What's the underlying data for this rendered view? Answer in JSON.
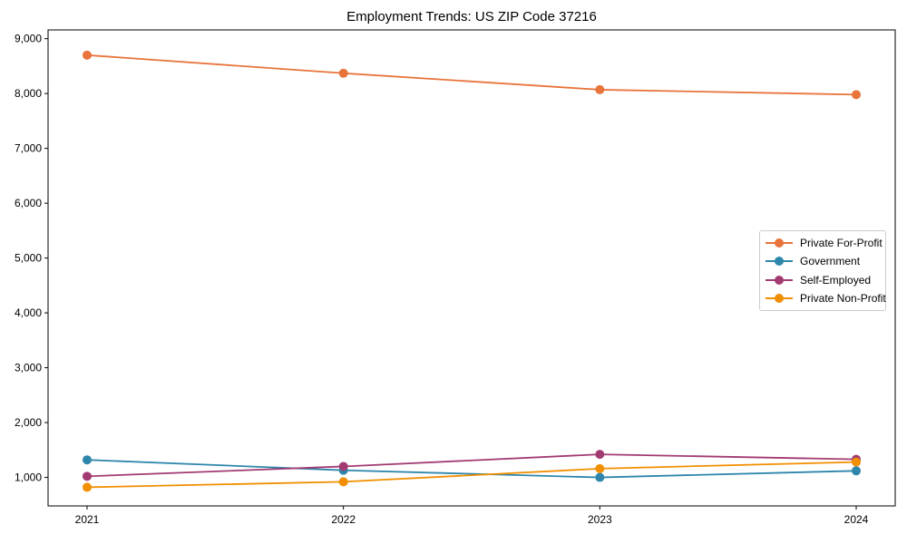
{
  "chart_data": {
    "type": "line",
    "title": "Employment Trends: US ZIP Code 37216",
    "xlabel": "",
    "ylabel": "",
    "categories": [
      "2021",
      "2022",
      "2023",
      "2024"
    ],
    "series": [
      {
        "name": "Private For-Profit",
        "color": "#E8743B",
        "values": [
          8700,
          8370,
          8070,
          7980
        ]
      },
      {
        "name": "Government",
        "color": "#2E86AB",
        "values": [
          1320,
          1130,
          1000,
          1120
        ]
      },
      {
        "name": "Self-Employed",
        "color": "#A23B72",
        "values": [
          1020,
          1200,
          1420,
          1330
        ]
      },
      {
        "name": "Private Non-Profit",
        "color": "#F18F01",
        "values": [
          820,
          920,
          1160,
          1280
        ]
      }
    ],
    "y_ticks": [
      1000,
      2000,
      3000,
      4000,
      5000,
      6000,
      7000,
      8000,
      9000
    ],
    "y_tick_labels": [
      "1,000",
      "2,000",
      "3,000",
      "4,000",
      "5,000",
      "6,000",
      "7,000",
      "8,000",
      "9,000"
    ],
    "ylim": [
      480,
      9160
    ],
    "grid": false,
    "legend_position": "middle-right",
    "marker": "circle",
    "axis_color": "#000000"
  }
}
